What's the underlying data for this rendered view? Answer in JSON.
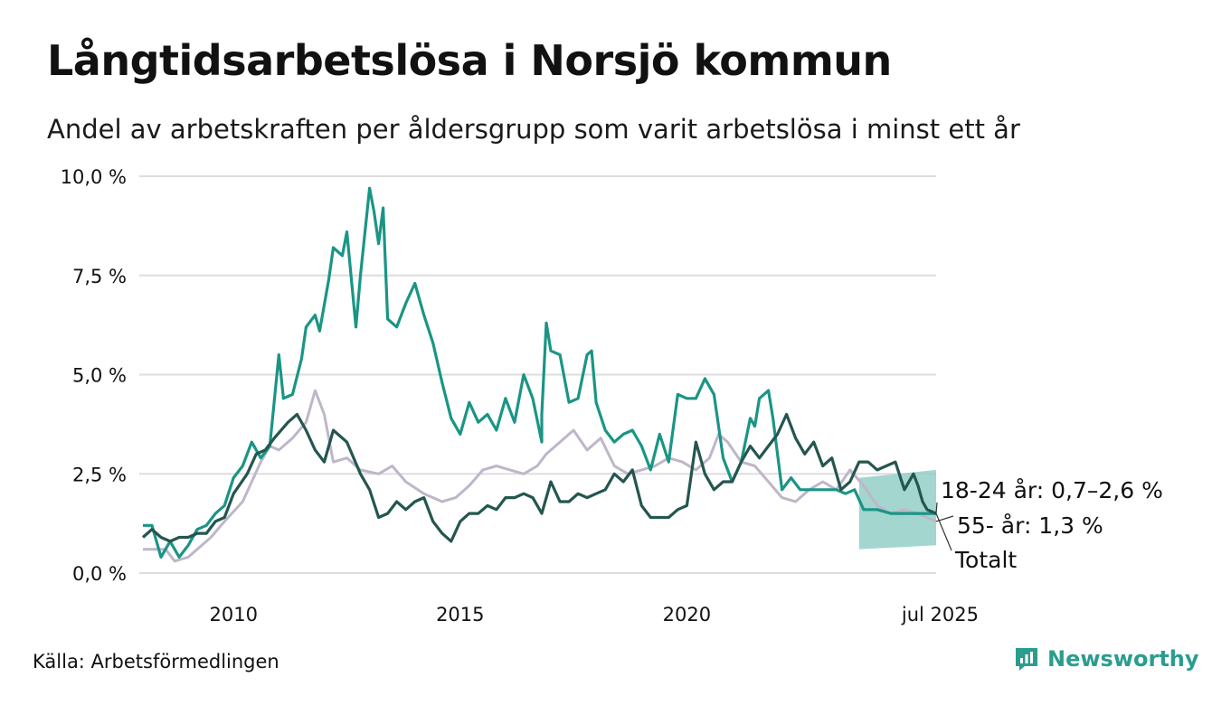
{
  "title": "Långtidsarbetslösa i Norsjö kommun",
  "subtitle": "Andel av arbetskraften per åldersgrupp som varit arbetslösa i minst ett år",
  "source": "Källa: Arbetsförmedlingen",
  "brand": "Newsworthy",
  "colors": {
    "youth": "#1a9585",
    "youth_band": "#93cfc7",
    "older": "#bfb6c9",
    "total": "#24564f",
    "grid": "#dddddd",
    "brand": "#2a9d8f"
  },
  "chart_data": {
    "type": "line",
    "xlim": [
      2008.0,
      2025.5
    ],
    "ylim": [
      0,
      10
    ],
    "y_ticks": [
      0,
      2.5,
      5,
      7.5,
      10
    ],
    "y_tick_labels": [
      "0,0 %",
      "2,5 %",
      "5,0 %",
      "7,5 %",
      "10,0 %"
    ],
    "x_ticks": [
      2010,
      2015,
      2020,
      2025.5
    ],
    "x_tick_labels": [
      "2010",
      "2015",
      "2020",
      "jul 2025"
    ],
    "series": [
      {
        "key": "older",
        "name": "55- år",
        "end_label": "55- år: 1,3 %",
        "points": [
          [
            2008.0,
            0.6
          ],
          [
            2008.5,
            0.6
          ],
          [
            2008.7,
            0.3
          ],
          [
            2009.0,
            0.4
          ],
          [
            2009.5,
            0.9
          ],
          [
            2009.8,
            1.3
          ],
          [
            2010.2,
            1.8
          ],
          [
            2010.6,
            2.8
          ],
          [
            2010.8,
            3.2
          ],
          [
            2011.0,
            3.1
          ],
          [
            2011.3,
            3.4
          ],
          [
            2011.6,
            3.8
          ],
          [
            2011.8,
            4.6
          ],
          [
            2012.0,
            4.0
          ],
          [
            2012.2,
            2.8
          ],
          [
            2012.5,
            2.9
          ],
          [
            2012.8,
            2.6
          ],
          [
            2013.2,
            2.5
          ],
          [
            2013.5,
            2.7
          ],
          [
            2013.8,
            2.3
          ],
          [
            2014.2,
            2.0
          ],
          [
            2014.6,
            1.8
          ],
          [
            2014.9,
            1.9
          ],
          [
            2015.2,
            2.2
          ],
          [
            2015.5,
            2.6
          ],
          [
            2015.8,
            2.7
          ],
          [
            2016.1,
            2.6
          ],
          [
            2016.4,
            2.5
          ],
          [
            2016.7,
            2.7
          ],
          [
            2016.9,
            3.0
          ],
          [
            2017.2,
            3.3
          ],
          [
            2017.5,
            3.6
          ],
          [
            2017.8,
            3.1
          ],
          [
            2018.1,
            3.4
          ],
          [
            2018.4,
            2.7
          ],
          [
            2018.7,
            2.5
          ],
          [
            2019.0,
            2.6
          ],
          [
            2019.3,
            2.7
          ],
          [
            2019.6,
            2.9
          ],
          [
            2019.9,
            2.8
          ],
          [
            2020.2,
            2.6
          ],
          [
            2020.5,
            2.9
          ],
          [
            2020.7,
            3.5
          ],
          [
            2020.9,
            3.3
          ],
          [
            2021.2,
            2.8
          ],
          [
            2021.5,
            2.7
          ],
          [
            2021.8,
            2.3
          ],
          [
            2022.1,
            1.9
          ],
          [
            2022.4,
            1.8
          ],
          [
            2022.7,
            2.1
          ],
          [
            2023.0,
            2.3
          ],
          [
            2023.3,
            2.1
          ],
          [
            2023.6,
            2.6
          ],
          [
            2023.9,
            2.2
          ],
          [
            2024.2,
            1.7
          ],
          [
            2024.5,
            1.5
          ],
          [
            2024.8,
            1.6
          ],
          [
            2025.1,
            1.5
          ],
          [
            2025.5,
            1.3
          ]
        ]
      },
      {
        "key": "youth",
        "name": "18-24 år",
        "end_label": "18-24 år: 0,7–2,6 %",
        "band_start": 2023.8,
        "band_lower": [
          0.6,
          0.7
        ],
        "band_upper": [
          2.4,
          2.6
        ],
        "points": [
          [
            2008.0,
            1.2
          ],
          [
            2008.2,
            1.2
          ],
          [
            2008.4,
            0.4
          ],
          [
            2008.6,
            0.8
          ],
          [
            2008.8,
            0.4
          ],
          [
            2009.0,
            0.7
          ],
          [
            2009.2,
            1.1
          ],
          [
            2009.4,
            1.2
          ],
          [
            2009.6,
            1.5
          ],
          [
            2009.8,
            1.7
          ],
          [
            2010.0,
            2.4
          ],
          [
            2010.2,
            2.7
          ],
          [
            2010.4,
            3.3
          ],
          [
            2010.6,
            2.9
          ],
          [
            2010.8,
            3.2
          ],
          [
            2011.0,
            5.5
          ],
          [
            2011.1,
            4.4
          ],
          [
            2011.3,
            4.5
          ],
          [
            2011.5,
            5.4
          ],
          [
            2011.6,
            6.2
          ],
          [
            2011.8,
            6.5
          ],
          [
            2011.9,
            6.1
          ],
          [
            2012.1,
            7.4
          ],
          [
            2012.2,
            8.2
          ],
          [
            2012.4,
            8.0
          ],
          [
            2012.5,
            8.6
          ],
          [
            2012.7,
            6.2
          ],
          [
            2012.8,
            7.5
          ],
          [
            2013.0,
            9.7
          ],
          [
            2013.1,
            9.1
          ],
          [
            2013.2,
            8.3
          ],
          [
            2013.3,
            9.2
          ],
          [
            2013.4,
            6.4
          ],
          [
            2013.6,
            6.2
          ],
          [
            2013.8,
            6.8
          ],
          [
            2014.0,
            7.3
          ],
          [
            2014.2,
            6.5
          ],
          [
            2014.4,
            5.8
          ],
          [
            2014.6,
            4.8
          ],
          [
            2014.8,
            3.9
          ],
          [
            2015.0,
            3.5
          ],
          [
            2015.2,
            4.3
          ],
          [
            2015.4,
            3.8
          ],
          [
            2015.6,
            4.0
          ],
          [
            2015.8,
            3.6
          ],
          [
            2016.0,
            4.4
          ],
          [
            2016.2,
            3.8
          ],
          [
            2016.4,
            5.0
          ],
          [
            2016.6,
            4.4
          ],
          [
            2016.8,
            3.3
          ],
          [
            2016.8,
            4.0
          ],
          [
            2016.9,
            6.3
          ],
          [
            2017.0,
            5.6
          ],
          [
            2017.2,
            5.5
          ],
          [
            2017.4,
            4.3
          ],
          [
            2017.6,
            4.4
          ],
          [
            2017.8,
            5.5
          ],
          [
            2017.9,
            5.6
          ],
          [
            2018.0,
            4.3
          ],
          [
            2018.2,
            3.6
          ],
          [
            2018.4,
            3.3
          ],
          [
            2018.6,
            3.5
          ],
          [
            2018.8,
            3.6
          ],
          [
            2019.0,
            3.2
          ],
          [
            2019.2,
            2.6
          ],
          [
            2019.4,
            3.5
          ],
          [
            2019.6,
            2.8
          ],
          [
            2019.8,
            4.5
          ],
          [
            2020.0,
            4.4
          ],
          [
            2020.2,
            4.4
          ],
          [
            2020.4,
            4.9
          ],
          [
            2020.6,
            4.5
          ],
          [
            2020.8,
            2.9
          ],
          [
            2021.0,
            2.3
          ],
          [
            2021.2,
            2.8
          ],
          [
            2021.4,
            3.9
          ],
          [
            2021.5,
            3.7
          ],
          [
            2021.6,
            4.4
          ],
          [
            2021.8,
            4.6
          ],
          [
            2021.9,
            3.9
          ],
          [
            2022.0,
            3.0
          ],
          [
            2022.1,
            2.1
          ],
          [
            2022.3,
            2.4
          ],
          [
            2022.5,
            2.1
          ],
          [
            2022.8,
            2.1
          ],
          [
            2023.0,
            2.1
          ],
          [
            2023.3,
            2.1
          ],
          [
            2023.5,
            2.0
          ],
          [
            2023.7,
            2.1
          ],
          [
            2023.9,
            1.6
          ],
          [
            2024.2,
            1.6
          ],
          [
            2024.5,
            1.5
          ],
          [
            2024.8,
            1.5
          ],
          [
            2025.1,
            1.5
          ],
          [
            2025.5,
            1.5
          ]
        ]
      },
      {
        "key": "total",
        "name": "Totalt",
        "end_label": "Totalt",
        "points": [
          [
            2008.0,
            0.9
          ],
          [
            2008.2,
            1.1
          ],
          [
            2008.4,
            0.9
          ],
          [
            2008.6,
            0.8
          ],
          [
            2008.8,
            0.9
          ],
          [
            2009.0,
            0.9
          ],
          [
            2009.2,
            1.0
          ],
          [
            2009.4,
            1.0
          ],
          [
            2009.6,
            1.3
          ],
          [
            2009.8,
            1.4
          ],
          [
            2010.0,
            2.0
          ],
          [
            2010.3,
            2.5
          ],
          [
            2010.5,
            3.0
          ],
          [
            2010.7,
            3.1
          ],
          [
            2010.9,
            3.4
          ],
          [
            2011.2,
            3.8
          ],
          [
            2011.4,
            4.0
          ],
          [
            2011.6,
            3.6
          ],
          [
            2011.8,
            3.1
          ],
          [
            2012.0,
            2.8
          ],
          [
            2012.2,
            3.6
          ],
          [
            2012.5,
            3.3
          ],
          [
            2012.8,
            2.5
          ],
          [
            2013.0,
            2.1
          ],
          [
            2013.2,
            1.4
          ],
          [
            2013.4,
            1.5
          ],
          [
            2013.6,
            1.8
          ],
          [
            2013.8,
            1.6
          ],
          [
            2014.0,
            1.8
          ],
          [
            2014.2,
            1.9
          ],
          [
            2014.4,
            1.3
          ],
          [
            2014.6,
            1.0
          ],
          [
            2014.8,
            0.8
          ],
          [
            2015.0,
            1.3
          ],
          [
            2015.2,
            1.5
          ],
          [
            2015.4,
            1.5
          ],
          [
            2015.6,
            1.7
          ],
          [
            2015.8,
            1.6
          ],
          [
            2016.0,
            1.9
          ],
          [
            2016.2,
            1.9
          ],
          [
            2016.4,
            2.0
          ],
          [
            2016.6,
            1.9
          ],
          [
            2016.8,
            1.5
          ],
          [
            2017.0,
            2.3
          ],
          [
            2017.2,
            1.8
          ],
          [
            2017.4,
            1.8
          ],
          [
            2017.6,
            2.0
          ],
          [
            2017.8,
            1.9
          ],
          [
            2018.0,
            2.0
          ],
          [
            2018.2,
            2.1
          ],
          [
            2018.4,
            2.5
          ],
          [
            2018.6,
            2.3
          ],
          [
            2018.8,
            2.6
          ],
          [
            2019.0,
            1.7
          ],
          [
            2019.2,
            1.4
          ],
          [
            2019.4,
            1.4
          ],
          [
            2019.6,
            1.4
          ],
          [
            2019.8,
            1.6
          ],
          [
            2020.0,
            1.7
          ],
          [
            2020.2,
            3.3
          ],
          [
            2020.4,
            2.5
          ],
          [
            2020.6,
            2.1
          ],
          [
            2020.8,
            2.3
          ],
          [
            2021.0,
            2.3
          ],
          [
            2021.2,
            2.8
          ],
          [
            2021.4,
            3.2
          ],
          [
            2021.6,
            2.9
          ],
          [
            2021.8,
            3.2
          ],
          [
            2022.0,
            3.5
          ],
          [
            2022.2,
            4.0
          ],
          [
            2022.4,
            3.4
          ],
          [
            2022.6,
            3.0
          ],
          [
            2022.8,
            3.3
          ],
          [
            2023.0,
            2.7
          ],
          [
            2023.2,
            2.9
          ],
          [
            2023.4,
            2.1
          ],
          [
            2023.6,
            2.3
          ],
          [
            2023.8,
            2.8
          ],
          [
            2024.0,
            2.8
          ],
          [
            2024.2,
            2.6
          ],
          [
            2024.4,
            2.7
          ],
          [
            2024.6,
            2.8
          ],
          [
            2024.8,
            2.1
          ],
          [
            2025.0,
            2.5
          ],
          [
            2025.1,
            2.2
          ],
          [
            2025.2,
            1.8
          ],
          [
            2025.3,
            1.6
          ],
          [
            2025.5,
            1.5
          ]
        ]
      }
    ]
  }
}
